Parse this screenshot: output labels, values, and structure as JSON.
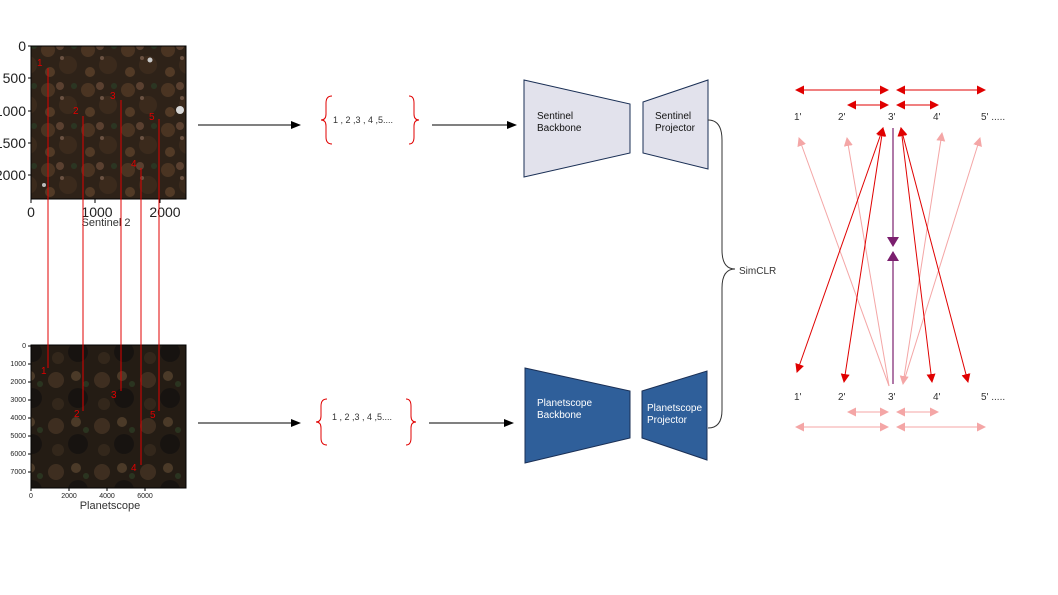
{
  "sentinel_plot": {
    "caption": "Sentinel 2",
    "y_ticks": [
      "0",
      "500",
      "1000",
      "1500",
      "2000"
    ],
    "x_ticks": [
      "0",
      "1000",
      "2000"
    ],
    "point_labels": [
      "1",
      "2",
      "3",
      "4",
      "5"
    ]
  },
  "planetscope_plot": {
    "caption": "Planetscope",
    "y_ticks": [
      "0",
      "1000",
      "2000",
      "3000",
      "4000",
      "5000",
      "6000",
      "7000"
    ],
    "x_ticks": [
      "0",
      "2000",
      "4000",
      "6000"
    ],
    "point_labels": [
      "1",
      "2",
      "3",
      "4",
      "5"
    ]
  },
  "sequence_text": "1 , 2 ,3 , 4 ,5....",
  "sentinel_backbone": "Sentinel\nBackbone",
  "sentinel_projector": "Sentinel\nProjector",
  "planetscope_backbone": "Planetscope\nBackbone",
  "planetscope_projector": "Planetscope\nProjector",
  "simclr_label": "SimCLR",
  "top_nodes": [
    "1'",
    "2'",
    "3'",
    "4'",
    "5'  ....."
  ],
  "bottom_nodes": [
    "1'",
    "2'",
    "3'",
    "4'",
    "5'  ....."
  ],
  "colors": {
    "red": "#e00000",
    "pink": "#f4a6a6",
    "purple": "#7b1f6e",
    "sentinel_box": "#e2e2ec",
    "planetscope_box": "#2f5f9a",
    "satellite_dark": "#2a2018"
  }
}
